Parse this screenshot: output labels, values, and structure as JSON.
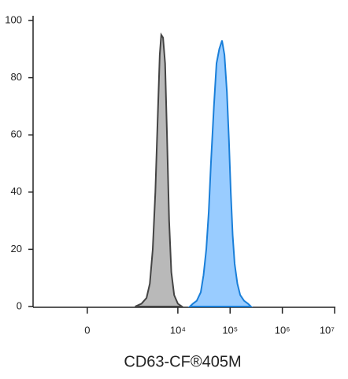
{
  "chart_data": {
    "type": "histogram-overlay",
    "x_label": "CD63-CF®405M",
    "xscale": "asinh",
    "xlim": [
      -2000,
      10000000
    ],
    "xticks": [
      0,
      {
        "value": 10000,
        "label": "10⁴"
      },
      {
        "value": 100000,
        "label": "10⁵"
      },
      {
        "value": 1000000,
        "label": "10⁶"
      },
      {
        "value": 10000000,
        "label": "10⁷"
      }
    ],
    "ylim": [
      0,
      100
    ],
    "yticks": [
      0,
      20,
      40,
      60,
      80,
      100
    ],
    "series": [
      {
        "color": "#b9b9b9",
        "line_color": "#444444",
        "x": [
          1500,
          2000,
          2500,
          2900,
          3300,
          3700,
          4100,
          4500,
          4800,
          5200,
          5700,
          6200,
          6800,
          7500,
          8500,
          10000,
          12000
        ],
        "values": [
          0,
          1,
          3,
          8,
          20,
          40,
          65,
          88,
          95,
          94,
          85,
          60,
          30,
          12,
          4,
          1,
          0
        ]
      },
      {
        "color": "#99ccff",
        "line_color": "#1a7fd9",
        "x": [
          17000,
          19400,
          23000,
          27500,
          31000,
          35000,
          39000,
          43000,
          49000,
          55000,
          62000,
          70000,
          78000,
          87000,
          95000,
          103000,
          112000,
          122000,
          138000,
          156000,
          185000,
          220000,
          250000
        ],
        "values": [
          0,
          1,
          2,
          5,
          11,
          20,
          33,
          50,
          70,
          85,
          90,
          93,
          88,
          75,
          58,
          40,
          25,
          15,
          8,
          4,
          2,
          1,
          0
        ]
      }
    ]
  }
}
